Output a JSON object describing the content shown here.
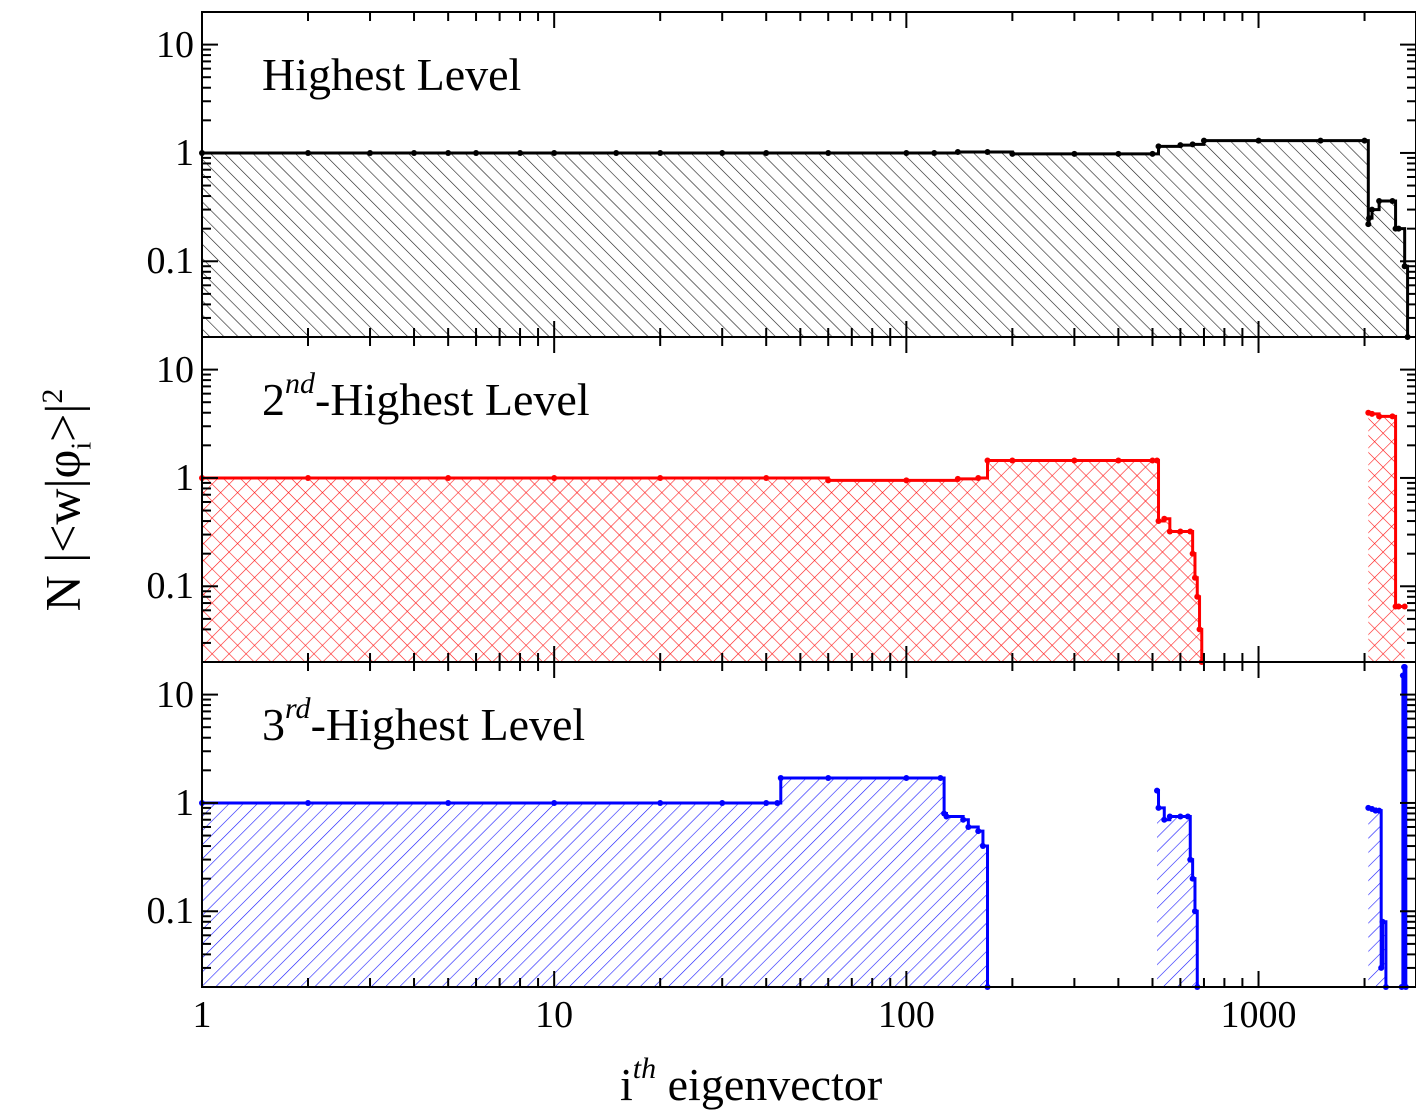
{
  "chart_data": {
    "type": "area",
    "xlabel": {
      "base": "i",
      "sup": "th",
      "rest": "eigenvector"
    },
    "ylabel": {
      "prefix": "N |<w|φ",
      "sub": "i",
      "suffix": ">|",
      "sup": "2"
    },
    "x_scale": "log",
    "y_scale": "log",
    "xlim": [
      1,
      2800
    ],
    "ylim": [
      0.02,
      20
    ],
    "x_ticks": [
      "1",
      "10",
      "100",
      "1000"
    ],
    "y_ticks": [
      "0.1",
      "1",
      "10"
    ],
    "grid": false,
    "panels": [
      {
        "label": {
          "base": "",
          "sup": "",
          "rest": "Highest Level"
        },
        "color": "#000000",
        "hatch": "backslash",
        "series": [
          {
            "x": [
              1,
              2,
              3,
              4,
              5,
              6,
              8,
              10,
              15,
              20,
              30,
              40,
              60,
              100,
              120,
              140,
              170,
              200,
              300,
              400,
              500,
              520,
              600,
              650,
              700,
              1000,
              1500,
              2000,
              2050,
              2060,
              2100,
              2200,
              2400,
              2450,
              2500,
              2600,
              2650
            ],
            "y": [
              1.0,
              1.0,
              1.0,
              1.0,
              1.0,
              1.0,
              1.0,
              1.0,
              1.0,
              1.0,
              1.0,
              1.0,
              1.0,
              1.0,
              1.0,
              1.02,
              1.02,
              0.98,
              0.98,
              0.98,
              0.98,
              1.15,
              1.18,
              1.2,
              1.3,
              1.3,
              1.3,
              1.3,
              0.22,
              0.25,
              0.3,
              0.36,
              0.36,
              0.2,
              0.2,
              0.09,
              0.02
            ]
          }
        ]
      },
      {
        "label": {
          "base": "2",
          "sup": "nd",
          "rest": "-Highest Level"
        },
        "color": "#ff0000",
        "hatch": "cross",
        "series": [
          {
            "x": [
              1,
              2,
              5,
              10,
              20,
              40,
              60,
              100,
              140,
              160,
              170,
              200,
              300,
              400,
              500,
              515,
              520,
              540,
              560,
              600,
              640,
              650,
              660,
              670,
              680,
              690
            ],
            "y": [
              1.0,
              1.0,
              1.0,
              1.0,
              1.0,
              1.0,
              0.95,
              0.95,
              0.98,
              1.0,
              1.45,
              1.45,
              1.45,
              1.45,
              1.45,
              1.45,
              0.4,
              0.42,
              0.32,
              0.32,
              0.32,
              0.2,
              0.12,
              0.08,
              0.04,
              0.02
            ]
          },
          {
            "x": [
              2050,
              2100,
              2200,
              2400,
              2450,
              2500,
              2600
            ],
            "y": [
              4.0,
              3.9,
              3.7,
              3.7,
              0.065,
              0.065,
              0.065
            ]
          }
        ]
      },
      {
        "label": {
          "base": "3",
          "sup": "rd",
          "rest": "-Highest Level"
        },
        "color": "#0000ff",
        "hatch": "slash",
        "series": [
          {
            "x": [
              1,
              2,
              5,
              10,
              20,
              30,
              40,
              43,
              44,
              60,
              100,
              125,
              128,
              130,
              145,
              150,
              160,
              165,
              170
            ],
            "y": [
              1.0,
              1.0,
              1.0,
              1.0,
              1.0,
              1.0,
              1.0,
              1.0,
              1.7,
              1.7,
              1.7,
              1.7,
              0.8,
              0.75,
              0.7,
              0.6,
              0.55,
              0.4,
              0.02
            ]
          },
          {
            "x": [
              515,
              520,
              540,
              560,
              600,
              630,
              640,
              650,
              660,
              670
            ],
            "y": [
              1.3,
              0.9,
              0.7,
              0.75,
              0.75,
              0.75,
              0.3,
              0.2,
              0.1,
              0.02
            ]
          },
          {
            "x": [
              2050,
              2100,
              2150,
              2200,
              2230,
              2250,
              2300
            ],
            "y": [
              0.9,
              0.88,
              0.85,
              0.85,
              0.03,
              0.08,
              0.02
            ]
          },
          {
            "x": [
              2550,
              2570,
              2590,
              2600,
              2620
            ],
            "y": [
              0.02,
              15,
              18,
              18,
              0.02
            ]
          }
        ]
      }
    ]
  }
}
